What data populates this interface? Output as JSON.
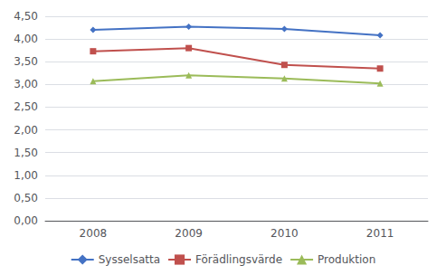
{
  "chart_data": {
    "type": "line",
    "categories": [
      "2008",
      "2009",
      "2010",
      "2011"
    ],
    "series": [
      {
        "name": "Sysselsatta",
        "color": "#4472C4",
        "marker": "diamond",
        "values": [
          4.2,
          4.27,
          4.22,
          4.08
        ]
      },
      {
        "name": "Förädlingsvärde",
        "color": "#C0504D",
        "marker": "square",
        "values": [
          3.73,
          3.8,
          3.43,
          3.35
        ]
      },
      {
        "name": "Produktion",
        "color": "#9BBB59",
        "marker": "triangle",
        "values": [
          3.07,
          3.2,
          3.13,
          3.02
        ]
      }
    ],
    "ylim": [
      0.0,
      4.5
    ],
    "yticks": [
      {
        "value": 0.0,
        "label": "0,00"
      },
      {
        "value": 0.5,
        "label": "0,50"
      },
      {
        "value": 1.0,
        "label": "1,00"
      },
      {
        "value": 1.5,
        "label": "1,50"
      },
      {
        "value": 2.0,
        "label": "2,00"
      },
      {
        "value": 2.5,
        "label": "2,50"
      },
      {
        "value": 3.0,
        "label": "3,00"
      },
      {
        "value": 3.5,
        "label": "3,50"
      },
      {
        "value": 4.0,
        "label": "4,00"
      },
      {
        "value": 4.5,
        "label": "4,50"
      }
    ],
    "grid": true,
    "legend": "bottom"
  }
}
